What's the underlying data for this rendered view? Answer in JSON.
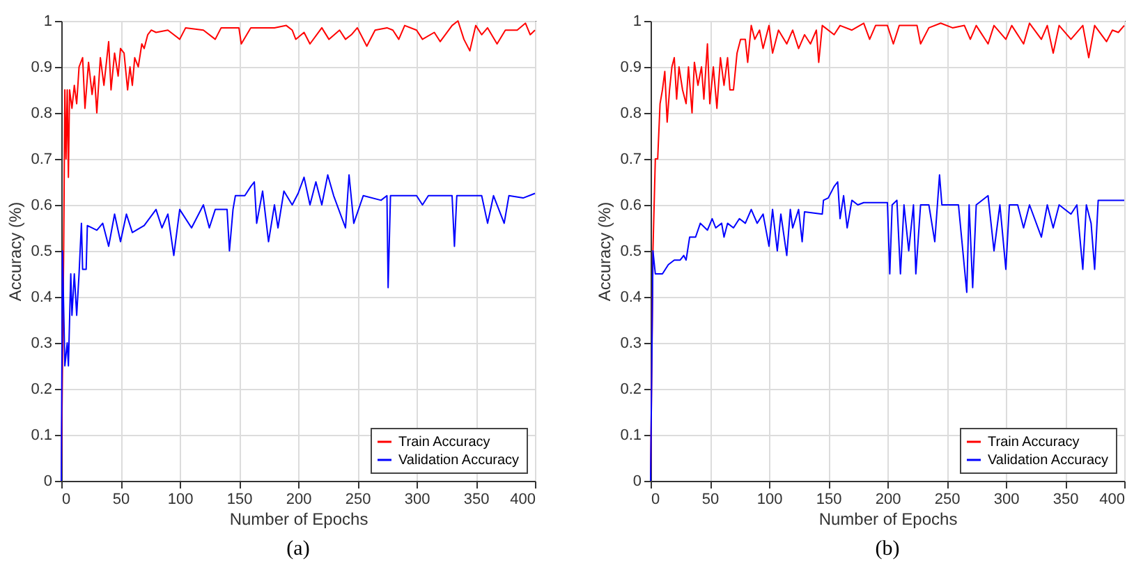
{
  "chart_data": [
    {
      "type": "line",
      "xlabel": "Number of Epochs",
      "ylabel": "Accuracy (%)",
      "annotations": [
        "(a)"
      ],
      "xlim": [
        0,
        400
      ],
      "ylim": [
        0,
        1
      ],
      "xticks": [
        0,
        50,
        100,
        150,
        200,
        250,
        300,
        350,
        400
      ],
      "yticks": [
        0,
        0.1,
        0.2,
        0.3,
        0.4,
        0.5,
        0.6,
        0.7,
        0.8,
        0.9,
        1
      ],
      "grid": true,
      "legend": "bottom right",
      "series": [
        {
          "name": "Train Accuracy",
          "color": "#ff0000",
          "x": [
            0,
            2,
            3,
            4,
            5,
            6,
            7,
            9,
            11,
            13,
            15,
            18,
            20,
            23,
            26,
            28,
            30,
            33,
            36,
            40,
            42,
            45,
            48,
            50,
            53,
            56,
            58,
            60,
            62,
            65,
            68,
            70,
            73,
            76,
            80,
            90,
            100,
            105,
            120,
            130,
            135,
            150,
            152,
            160,
            180,
            190,
            195,
            198,
            205,
            210,
            220,
            226,
            235,
            240,
            245,
            250,
            258,
            265,
            275,
            280,
            285,
            290,
            300,
            305,
            315,
            320,
            330,
            335,
            340,
            345,
            350,
            355,
            360,
            368,
            375,
            385,
            392,
            396,
            400
          ],
          "values": [
            0,
            0.5,
            0.85,
            0.7,
            0.85,
            0.66,
            0.85,
            0.81,
            0.86,
            0.82,
            0.9,
            0.92,
            0.81,
            0.91,
            0.84,
            0.88,
            0.8,
            0.92,
            0.86,
            0.955,
            0.85,
            0.93,
            0.88,
            0.94,
            0.93,
            0.85,
            0.9,
            0.86,
            0.92,
            0.9,
            0.95,
            0.94,
            0.97,
            0.98,
            0.975,
            0.98,
            0.96,
            0.985,
            0.98,
            0.96,
            0.985,
            0.985,
            0.95,
            0.985,
            0.985,
            0.99,
            0.98,
            0.96,
            0.975,
            0.95,
            0.985,
            0.96,
            0.98,
            0.96,
            0.97,
            0.985,
            0.945,
            0.98,
            0.985,
            0.98,
            0.96,
            0.99,
            0.98,
            0.96,
            0.975,
            0.955,
            0.99,
            1.0,
            0.96,
            0.935,
            0.99,
            0.97,
            0.985,
            0.95,
            0.98,
            0.98,
            0.995,
            0.97,
            0.98
          ]
        },
        {
          "name": "Validation Accuracy",
          "color": "#0000ff",
          "x": [
            0,
            1,
            3,
            5,
            6,
            8,
            9,
            11,
            13,
            15,
            17,
            18,
            21,
            22,
            30,
            35,
            40,
            45,
            50,
            55,
            60,
            70,
            80,
            85,
            90,
            95,
            100,
            110,
            120,
            125,
            130,
            140,
            142,
            145,
            147,
            155,
            160,
            163,
            165,
            170,
            175,
            180,
            183,
            188,
            195,
            200,
            205,
            210,
            215,
            220,
            225,
            230,
            240,
            243,
            247,
            255,
            270,
            275,
            276,
            278,
            300,
            305,
            310,
            330,
            332,
            334,
            355,
            360,
            365,
            374,
            378,
            390,
            400
          ],
          "values": [
            0,
            0.5,
            0.25,
            0.3,
            0.25,
            0.45,
            0.36,
            0.45,
            0.36,
            0.45,
            0.56,
            0.46,
            0.46,
            0.555,
            0.545,
            0.56,
            0.51,
            0.58,
            0.52,
            0.58,
            0.54,
            0.555,
            0.59,
            0.55,
            0.58,
            0.49,
            0.59,
            0.55,
            0.6,
            0.55,
            0.59,
            0.59,
            0.5,
            0.59,
            0.62,
            0.62,
            0.64,
            0.65,
            0.56,
            0.63,
            0.52,
            0.6,
            0.55,
            0.63,
            0.6,
            0.625,
            0.66,
            0.6,
            0.65,
            0.6,
            0.665,
            0.62,
            0.55,
            0.665,
            0.56,
            0.62,
            0.61,
            0.62,
            0.42,
            0.62,
            0.62,
            0.6,
            0.62,
            0.62,
            0.51,
            0.62,
            0.62,
            0.56,
            0.62,
            0.56,
            0.62,
            0.615,
            0.625
          ]
        }
      ]
    },
    {
      "type": "line",
      "xlabel": "Number of Epochs",
      "ylabel": "Accuracy (%)",
      "annotations": [
        "(b)"
      ],
      "xlim": [
        0,
        400
      ],
      "ylim": [
        0,
        1
      ],
      "xticks": [
        0,
        50,
        100,
        150,
        200,
        250,
        300,
        350,
        400
      ],
      "yticks": [
        0,
        0.1,
        0.2,
        0.3,
        0.4,
        0.5,
        0.6,
        0.7,
        0.8,
        0.9,
        1
      ],
      "grid": true,
      "legend": "bottom right",
      "series": [
        {
          "name": "Train Accuracy",
          "color": "#ff0000",
          "x": [
            0,
            2,
            4,
            6,
            8,
            10,
            12,
            14,
            16,
            18,
            20,
            22,
            24,
            27,
            30,
            32,
            35,
            37,
            40,
            43,
            45,
            48,
            50,
            53,
            56,
            59,
            62,
            65,
            67,
            70,
            73,
            76,
            80,
            82,
            85,
            88,
            92,
            95,
            100,
            103,
            108,
            115,
            120,
            125,
            130,
            135,
            140,
            142,
            145,
            155,
            160,
            170,
            180,
            185,
            190,
            200,
            205,
            210,
            225,
            228,
            235,
            245,
            255,
            265,
            270,
            275,
            285,
            290,
            300,
            305,
            315,
            320,
            330,
            335,
            340,
            345,
            355,
            365,
            370,
            375,
            385,
            390,
            395,
            400
          ],
          "values": [
            0,
            0.5,
            0.7,
            0.7,
            0.82,
            0.85,
            0.89,
            0.78,
            0.85,
            0.9,
            0.92,
            0.83,
            0.9,
            0.85,
            0.82,
            0.9,
            0.8,
            0.91,
            0.86,
            0.9,
            0.83,
            0.95,
            0.82,
            0.9,
            0.81,
            0.92,
            0.86,
            0.92,
            0.85,
            0.85,
            0.93,
            0.96,
            0.96,
            0.91,
            0.99,
            0.96,
            0.98,
            0.94,
            0.99,
            0.93,
            0.98,
            0.95,
            0.98,
            0.94,
            0.97,
            0.95,
            0.98,
            0.91,
            0.99,
            0.97,
            0.99,
            0.98,
            0.995,
            0.96,
            0.99,
            0.99,
            0.95,
            0.99,
            0.99,
            0.95,
            0.985,
            0.995,
            0.985,
            0.99,
            0.96,
            0.99,
            0.95,
            0.99,
            0.96,
            0.99,
            0.95,
            0.995,
            0.96,
            0.99,
            0.93,
            0.99,
            0.96,
            0.99,
            0.92,
            0.99,
            0.955,
            0.98,
            0.975,
            0.99
          ]
        },
        {
          "name": "Validation Accuracy",
          "color": "#0000ff",
          "x": [
            0,
            2,
            4,
            10,
            15,
            20,
            25,
            28,
            30,
            33,
            38,
            42,
            48,
            52,
            55,
            60,
            62,
            65,
            70,
            75,
            80,
            85,
            90,
            95,
            100,
            103,
            107,
            110,
            115,
            118,
            120,
            125,
            128,
            130,
            145,
            146,
            150,
            155,
            158,
            160,
            163,
            166,
            170,
            175,
            180,
            200,
            202,
            204,
            208,
            211,
            214,
            218,
            222,
            224,
            228,
            235,
            240,
            244,
            246,
            255,
            260,
            267,
            269,
            272,
            275,
            285,
            290,
            295,
            300,
            303,
            310,
            315,
            320,
            330,
            335,
            340,
            345,
            355,
            360,
            365,
            368,
            372,
            375,
            378,
            390,
            400
          ],
          "values": [
            0,
            0.5,
            0.45,
            0.45,
            0.47,
            0.48,
            0.48,
            0.49,
            0.48,
            0.53,
            0.53,
            0.56,
            0.545,
            0.57,
            0.55,
            0.56,
            0.53,
            0.56,
            0.55,
            0.57,
            0.56,
            0.59,
            0.56,
            0.58,
            0.51,
            0.59,
            0.5,
            0.58,
            0.49,
            0.59,
            0.55,
            0.59,
            0.52,
            0.585,
            0.58,
            0.61,
            0.615,
            0.64,
            0.65,
            0.57,
            0.62,
            0.55,
            0.61,
            0.6,
            0.605,
            0.605,
            0.45,
            0.6,
            0.61,
            0.45,
            0.6,
            0.5,
            0.6,
            0.45,
            0.6,
            0.6,
            0.52,
            0.665,
            0.6,
            0.6,
            0.6,
            0.41,
            0.6,
            0.42,
            0.6,
            0.62,
            0.5,
            0.6,
            0.46,
            0.6,
            0.6,
            0.55,
            0.6,
            0.53,
            0.6,
            0.55,
            0.6,
            0.58,
            0.6,
            0.46,
            0.6,
            0.56,
            0.46,
            0.61,
            0.61,
            0.61
          ]
        }
      ]
    }
  ]
}
